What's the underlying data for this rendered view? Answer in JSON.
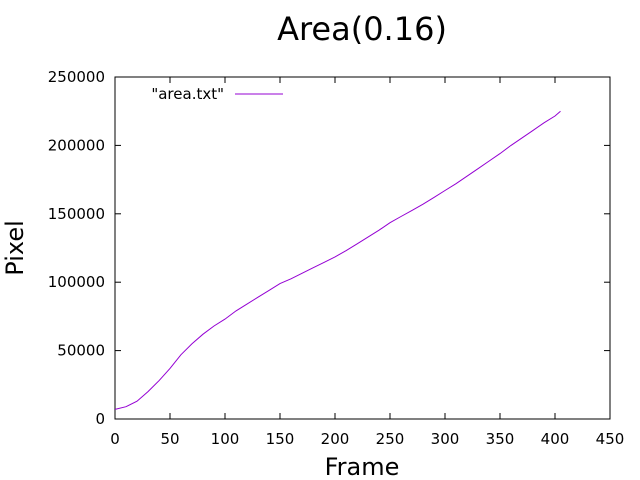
{
  "chart_data": {
    "type": "line",
    "title": "Area(0.16)",
    "xlabel": "Frame",
    "ylabel": "Pixel",
    "xlim": [
      0,
      450
    ],
    "ylim": [
      0,
      250000
    ],
    "xticks": [
      "0",
      "50",
      "100",
      "150",
      "200",
      "250",
      "300",
      "350",
      "400",
      "450"
    ],
    "yticks": [
      "0",
      "50000",
      "100000",
      "150000",
      "200000",
      "250000"
    ],
    "grid": false,
    "legend_position": "top-left",
    "series": [
      {
        "name": "\"area.txt\"",
        "color": "#9400d3",
        "x": [
          0,
          10,
          20,
          30,
          40,
          50,
          60,
          70,
          80,
          90,
          100,
          110,
          120,
          130,
          140,
          150,
          160,
          170,
          180,
          190,
          200,
          210,
          220,
          230,
          240,
          250,
          260,
          270,
          280,
          290,
          300,
          310,
          320,
          330,
          340,
          350,
          360,
          370,
          380,
          390,
          400,
          405
        ],
        "y": [
          7000,
          9000,
          13000,
          20000,
          28000,
          37000,
          47000,
          55000,
          62000,
          68000,
          73000,
          79000,
          84000,
          89000,
          94000,
          99000,
          102500,
          106500,
          110500,
          114500,
          118500,
          123000,
          128000,
          133000,
          138000,
          143500,
          148000,
          152500,
          157000,
          162000,
          167000,
          172000,
          177500,
          183000,
          188500,
          194000,
          200000,
          205500,
          211000,
          216500,
          221500,
          225000
        ]
      }
    ]
  }
}
